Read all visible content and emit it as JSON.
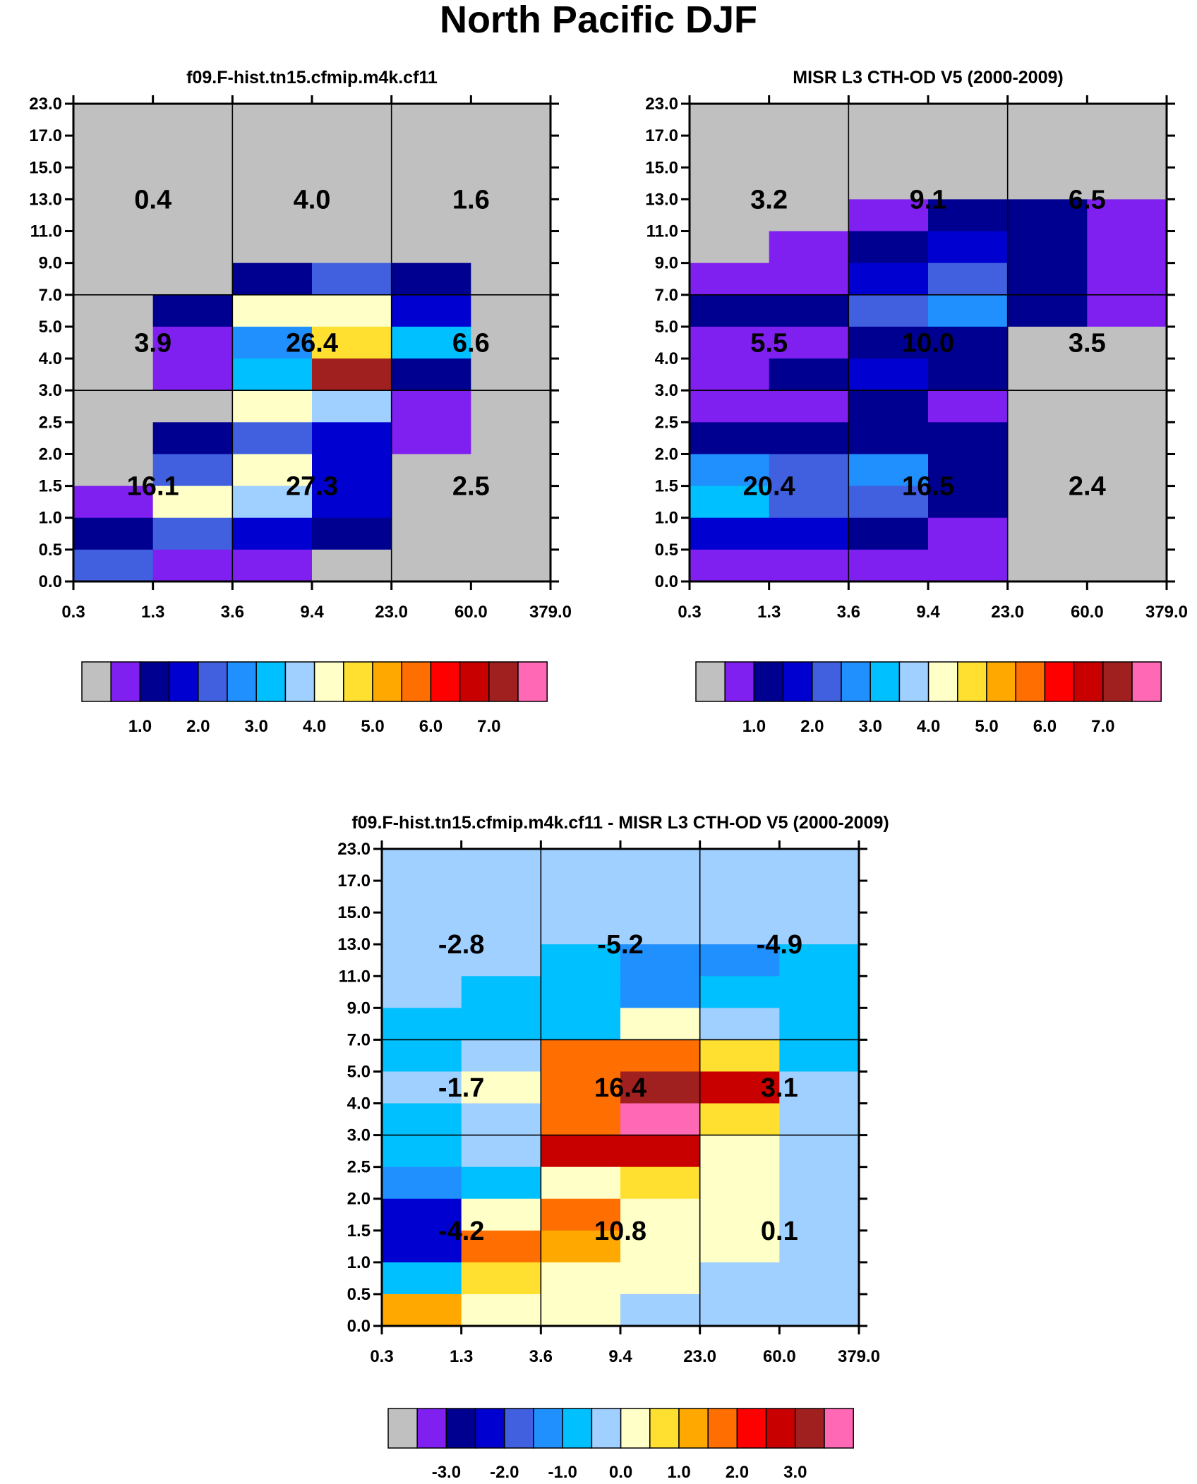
{
  "figure_title": "North Pacific DJF",
  "colors": {
    "palette": [
      "#c0c0c0",
      "#7f20f0",
      "#000090",
      "#0000d0",
      "#4060e0",
      "#2090ff",
      "#00c0ff",
      "#a0d0ff",
      "#ffffc8",
      "#ffe030",
      "#ffa800",
      "#ff6e00",
      "#ff0000",
      "#c80000",
      "#a02020",
      "#ff68b4"
    ]
  },
  "chart_data": [
    {
      "type": "heatmap",
      "name": "model",
      "title": "f09.F-hist.tn15.cfmip.m4k.cf11",
      "xlabel": "",
      "ylabel": "",
      "x_edges": [
        "0.3",
        "1.3",
        "3.6",
        "9.4",
        "23.0",
        "60.0",
        "379.0"
      ],
      "y_edges": [
        "0.0",
        "0.5",
        "1.0",
        "1.5",
        "2.0",
        "2.5",
        "3.0",
        "4.0",
        "5.0",
        "7.0",
        "9.0",
        "11.0",
        "13.0",
        "15.0",
        "17.0",
        "23.0"
      ],
      "color_index_rows_top_to_bottom": [
        [
          0,
          0,
          0,
          0,
          0,
          0
        ],
        [
          0,
          0,
          0,
          0,
          0,
          0
        ],
        [
          0,
          0,
          0,
          0,
          0,
          0
        ],
        [
          0,
          0,
          0,
          0,
          0,
          0
        ],
        [
          0,
          0,
          0,
          0,
          0,
          0
        ],
        [
          0,
          0,
          2,
          4,
          2,
          0
        ],
        [
          0,
          2,
          8,
          8,
          3,
          0
        ],
        [
          0,
          1,
          5,
          9,
          6,
          0
        ],
        [
          0,
          1,
          6,
          14,
          2,
          0
        ],
        [
          0,
          0,
          8,
          7,
          1,
          0
        ],
        [
          0,
          2,
          4,
          3,
          1,
          0
        ],
        [
          0,
          4,
          8,
          3,
          0,
          0
        ],
        [
          1,
          8,
          7,
          3,
          0,
          0
        ],
        [
          2,
          4,
          3,
          2,
          0,
          0
        ],
        [
          4,
          1,
          1,
          0,
          0,
          0
        ]
      ],
      "summary_values": {
        "high": [
          "0.4",
          "4.0",
          "1.6"
        ],
        "mid": [
          "3.9",
          "26.4",
          "6.6"
        ],
        "low": [
          "16.1",
          "27.3",
          "2.5"
        ]
      },
      "colorbar_labels": [
        "1.0",
        "2.0",
        "3.0",
        "4.0",
        "5.0",
        "6.0",
        "7.0"
      ]
    },
    {
      "type": "heatmap",
      "name": "observations",
      "title": "MISR L3 CTH-OD V5 (2000-2009)",
      "xlabel": "",
      "ylabel": "",
      "x_edges": [
        "0.3",
        "1.3",
        "3.6",
        "9.4",
        "23.0",
        "60.0",
        "379.0"
      ],
      "y_edges": [
        "0.0",
        "0.5",
        "1.0",
        "1.5",
        "2.0",
        "2.5",
        "3.0",
        "4.0",
        "5.0",
        "7.0",
        "9.0",
        "11.0",
        "13.0",
        "15.0",
        "17.0",
        "23.0"
      ],
      "color_index_rows_top_to_bottom": [
        [
          0,
          0,
          0,
          0,
          0,
          0
        ],
        [
          0,
          0,
          0,
          0,
          0,
          0
        ],
        [
          0,
          0,
          0,
          0,
          0,
          0
        ],
        [
          0,
          0,
          1,
          2,
          2,
          1
        ],
        [
          0,
          1,
          2,
          3,
          2,
          1
        ],
        [
          1,
          1,
          3,
          4,
          2,
          1
        ],
        [
          2,
          2,
          4,
          5,
          2,
          1
        ],
        [
          1,
          1,
          2,
          2,
          0,
          0
        ],
        [
          1,
          2,
          3,
          2,
          0,
          0
        ],
        [
          1,
          1,
          2,
          1,
          0,
          0
        ],
        [
          2,
          2,
          2,
          2,
          0,
          0
        ],
        [
          5,
          4,
          5,
          2,
          0,
          0
        ],
        [
          6,
          4,
          4,
          2,
          0,
          0
        ],
        [
          3,
          3,
          2,
          1,
          0,
          0
        ],
        [
          1,
          1,
          1,
          1,
          0,
          0
        ]
      ],
      "summary_values": {
        "high": [
          "3.2",
          "9.1",
          "6.5"
        ],
        "mid": [
          "5.5",
          "10.0",
          "3.5"
        ],
        "low": [
          "20.4",
          "16.5",
          "2.4"
        ]
      },
      "colorbar_labels": [
        "1.0",
        "2.0",
        "3.0",
        "4.0",
        "5.0",
        "6.0",
        "7.0"
      ]
    },
    {
      "type": "heatmap",
      "name": "difference",
      "title": "f09.F-hist.tn15.cfmip.m4k.cf11 - MISR L3 CTH-OD V5 (2000-2009)",
      "xlabel": "",
      "ylabel": "",
      "x_edges": [
        "0.3",
        "1.3",
        "3.6",
        "9.4",
        "23.0",
        "60.0",
        "379.0"
      ],
      "y_edges": [
        "0.0",
        "0.5",
        "1.0",
        "1.5",
        "2.0",
        "2.5",
        "3.0",
        "4.0",
        "5.0",
        "7.0",
        "9.0",
        "11.0",
        "13.0",
        "15.0",
        "17.0",
        "23.0"
      ],
      "color_index_rows_top_to_bottom": [
        [
          7,
          7,
          7,
          7,
          7,
          7
        ],
        [
          7,
          7,
          7,
          7,
          7,
          7
        ],
        [
          7,
          7,
          7,
          7,
          7,
          7
        ],
        [
          7,
          7,
          6,
          5,
          5,
          6
        ],
        [
          7,
          6,
          6,
          5,
          6,
          6
        ],
        [
          6,
          6,
          6,
          8,
          7,
          6
        ],
        [
          6,
          7,
          11,
          11,
          9,
          6
        ],
        [
          7,
          8,
          11,
          14,
          13,
          7
        ],
        [
          6,
          7,
          11,
          15,
          9,
          7
        ],
        [
          6,
          7,
          13,
          13,
          8,
          7
        ],
        [
          5,
          6,
          8,
          9,
          8,
          7
        ],
        [
          3,
          8,
          11,
          8,
          8,
          7
        ],
        [
          3,
          11,
          10,
          8,
          8,
          7
        ],
        [
          6,
          9,
          8,
          8,
          7,
          7
        ],
        [
          10,
          8,
          8,
          7,
          7,
          7
        ]
      ],
      "summary_values": {
        "high": [
          "-2.8",
          "-5.2",
          "-4.9"
        ],
        "mid": [
          "-1.7",
          "16.4",
          "3.1"
        ],
        "low": [
          "-4.2",
          "10.8",
          "0.1"
        ]
      },
      "colorbar_labels": [
        "-3.0",
        "-2.0",
        "-1.0",
        "0.0",
        "1.0",
        "2.0",
        "3.0"
      ]
    }
  ]
}
